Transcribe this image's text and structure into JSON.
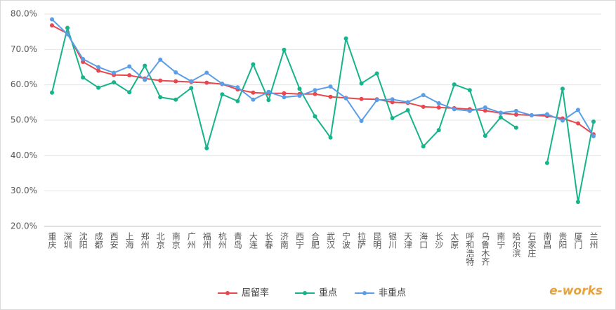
{
  "chart_data": {
    "type": "line",
    "categories": [
      "重庆",
      "深圳",
      "沈阳",
      "成都",
      "西安",
      "上海",
      "郑州",
      "北京",
      "南京",
      "广州",
      "福州",
      "杭州",
      "青岛",
      "大连",
      "长春",
      "济南",
      "西宁",
      "合肥",
      "武汉",
      "宁波",
      "拉萨",
      "昆明",
      "银川",
      "天津",
      "海口",
      "长沙",
      "太原",
      "呼和浩特",
      "乌鲁木齐",
      "南宁",
      "哈尔滨",
      "石家庄",
      "南昌",
      "贵阳",
      "厦门",
      "兰州"
    ],
    "series": [
      {
        "name": "居留率",
        "color": "#e8474e",
        "values": [
          76.8,
          74.5,
          66.5,
          64,
          62.8,
          62.7,
          61.8,
          61.2,
          61,
          60.8,
          60.6,
          60.2,
          58.7,
          57.8,
          57.6,
          57.6,
          57.4,
          57.4,
          56.6,
          56.3,
          56,
          55.9,
          55.1,
          54.9,
          53.8,
          53.6,
          53.4,
          53.1,
          52.7,
          52,
          51.6,
          51.4,
          51.2,
          50.5,
          49.1,
          46
        ]
      },
      {
        "name": "重点",
        "color": "#17b38a",
        "values": [
          57.8,
          76.1,
          62.1,
          59.2,
          60.7,
          57.9,
          65.4,
          56.5,
          55.8,
          59.1,
          42.1,
          57.3,
          55.4,
          65.8,
          55.7,
          69.9,
          58.9,
          51.1,
          45.1,
          73.1,
          60.4,
          63.2,
          50.6,
          52.8,
          42.6,
          47.2,
          60.1,
          58.5,
          45.6,
          50.8,
          47.9,
          null,
          37.9,
          58.9,
          26.9,
          49.6
        ]
      },
      {
        "name": "非重点",
        "color": "#5b9ee8",
        "values": [
          78.5,
          74.3,
          67.3,
          65,
          63.4,
          65.2,
          61.4,
          67.1,
          63.5,
          61,
          63.4,
          60.3,
          59.3,
          55.8,
          58,
          56.5,
          56.9,
          58.5,
          59.5,
          56.2,
          49.8,
          55.7,
          55.9,
          55.1,
          57.1,
          54.8,
          53.1,
          52.6,
          53.6,
          52.1,
          52.6,
          51.4,
          51.7,
          49.9,
          52.9,
          45.5
        ]
      }
    ],
    "ylim": [
      20,
      80
    ],
    "yticks": [
      {
        "value": 20,
        "label": "20.0%"
      },
      {
        "value": 30,
        "label": "30.0%"
      },
      {
        "value": 40,
        "label": "40.0%"
      },
      {
        "value": 50,
        "label": "50.0%"
      },
      {
        "value": 60,
        "label": "60.0%"
      },
      {
        "value": 70,
        "label": "70.0%"
      },
      {
        "value": 80,
        "label": "80.0%"
      }
    ],
    "grid": true,
    "legend": "bottom",
    "watermark": "e-works"
  }
}
